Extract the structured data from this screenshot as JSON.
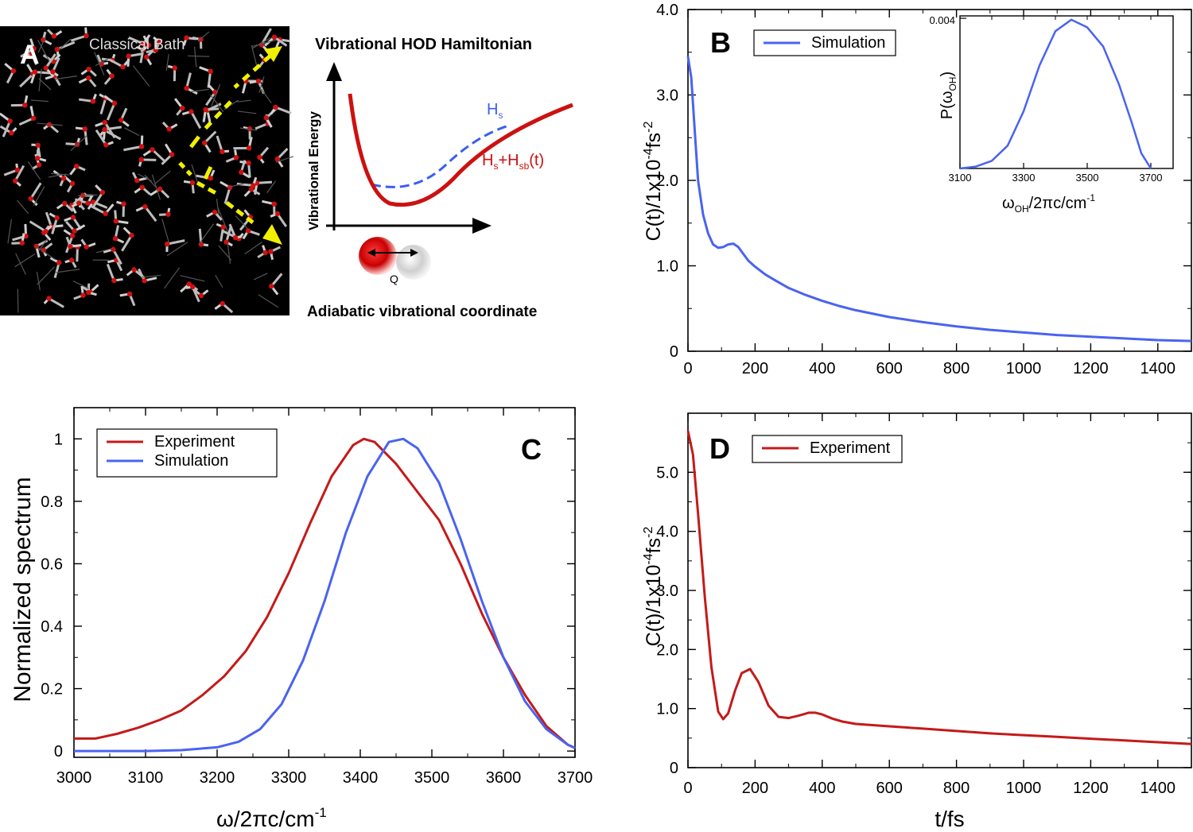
{
  "panel_a": {
    "letter": "A",
    "bath_label": "Classical Bath",
    "hamiltonian_title": "Vibrational HOD Hamiltonian",
    "y_label": "Vibrational Energy",
    "x_label": "Adiabatic vibrational coordinate",
    "hs_label": "H",
    "hs_sub": "s",
    "hssb_main": "H",
    "hssb_sub1": "s",
    "hssb_plus": "+H",
    "hssb_sub2": "sb",
    "hssb_tail": "(t)",
    "q_label": "Q",
    "colors": {
      "bath_bg": "#000000",
      "hs": "#3a5ff0",
      "hssb": "#cc1111",
      "arrow": "#f0f000"
    }
  },
  "chart_data": [
    {
      "id": "B",
      "type": "line",
      "panel_letter": "B",
      "xlabel": "",
      "ylabel_main": "C(t)/1x10",
      "ylabel_exp": "-4",
      "ylabel_unit": "fs",
      "ylabel_exp2": "-2",
      "xlim": [
        0,
        1500
      ],
      "ylim": [
        0,
        4.0
      ],
      "xticks": [
        0,
        200,
        400,
        600,
        800,
        1000,
        1200,
        1400
      ],
      "yticks": [
        0,
        1.0,
        2.0,
        3.0,
        4.0
      ],
      "ytick_labels": [
        "0",
        "1.0",
        "2.0",
        "3.0",
        "4.0"
      ],
      "legend": "top-left",
      "series": [
        {
          "name": "Simulation",
          "color": "#4a63f0",
          "x": [
            0,
            10,
            20,
            30,
            45,
            60,
            75,
            90,
            105,
            120,
            135,
            150,
            165,
            180,
            200,
            230,
            260,
            300,
            350,
            400,
            450,
            500,
            600,
            700,
            800,
            900,
            1000,
            1100,
            1200,
            1300,
            1400,
            1500
          ],
          "y": [
            3.45,
            3.2,
            2.6,
            2.0,
            1.6,
            1.38,
            1.25,
            1.21,
            1.22,
            1.25,
            1.26,
            1.22,
            1.14,
            1.06,
            0.99,
            0.9,
            0.83,
            0.74,
            0.66,
            0.59,
            0.53,
            0.48,
            0.4,
            0.34,
            0.29,
            0.25,
            0.22,
            0.19,
            0.17,
            0.15,
            0.13,
            0.12
          ]
        }
      ],
      "inset": {
        "type": "line",
        "xlabel_main": "ω",
        "xlabel_sub": "OH",
        "xlabel_tail": "/2πc/cm",
        "xlabel_exp": "-1",
        "ylabel_main": "P(ω",
        "ylabel_sub": "OH",
        "ylabel_tail": ")",
        "xlim": [
          3100,
          3770
        ],
        "ylim": [
          0,
          0.004
        ],
        "xticks": [
          3100,
          3300,
          3500,
          3700
        ],
        "ytick_top": "0.004",
        "series": [
          {
            "name": "",
            "color": "#4a63f0",
            "x": [
              3100,
              3150,
              3200,
              3250,
              3300,
              3350,
              3400,
              3450,
              3500,
              3550,
              3600,
              3640,
              3670,
              3700
            ],
            "y": [
              0,
              5e-05,
              0.0002,
              0.0006,
              0.0015,
              0.0027,
              0.0036,
              0.0039,
              0.0037,
              0.0032,
              0.0022,
              0.0012,
              0.0004,
              0.0
            ]
          }
        ]
      }
    },
    {
      "id": "C",
      "type": "line",
      "panel_letter": "C",
      "xlabel": "ω/2πc/cm",
      "xlabel_exp": "-1",
      "ylabel": "Normalized spectrum",
      "xlim": [
        3000,
        3700
      ],
      "ylim": [
        -0.02,
        1.1
      ],
      "xticks": [
        3000,
        3100,
        3200,
        3300,
        3400,
        3500,
        3600,
        3700
      ],
      "yticks": [
        0,
        0.2,
        0.4,
        0.6,
        0.8,
        1
      ],
      "ytick_labels": [
        "0",
        "0.2",
        "0.4",
        "0.6",
        "0.8",
        "1"
      ],
      "legend": "top-left",
      "series": [
        {
          "name": "Experiment",
          "color": "#c41a1a",
          "x": [
            3000,
            3030,
            3060,
            3090,
            3120,
            3150,
            3180,
            3210,
            3240,
            3270,
            3300,
            3330,
            3360,
            3390,
            3405,
            3420,
            3450,
            3480,
            3510,
            3540,
            3570,
            3600,
            3630,
            3660,
            3690,
            3700
          ],
          "y": [
            0.04,
            0.04,
            0.055,
            0.075,
            0.1,
            0.13,
            0.18,
            0.24,
            0.32,
            0.43,
            0.57,
            0.73,
            0.88,
            0.98,
            1.0,
            0.99,
            0.92,
            0.83,
            0.74,
            0.6,
            0.44,
            0.3,
            0.18,
            0.08,
            0.02,
            0.01
          ]
        },
        {
          "name": "Simulation",
          "color": "#4a63f0",
          "x": [
            3000,
            3100,
            3150,
            3200,
            3230,
            3260,
            3290,
            3320,
            3350,
            3380,
            3410,
            3440,
            3460,
            3480,
            3510,
            3540,
            3570,
            3600,
            3630,
            3660,
            3690,
            3700
          ],
          "y": [
            0.0,
            0.0,
            0.003,
            0.012,
            0.03,
            0.07,
            0.15,
            0.29,
            0.48,
            0.7,
            0.88,
            0.99,
            1.0,
            0.97,
            0.86,
            0.68,
            0.48,
            0.3,
            0.16,
            0.07,
            0.02,
            0.01
          ]
        }
      ]
    },
    {
      "id": "D",
      "type": "line",
      "panel_letter": "D",
      "xlabel": "t/fs",
      "ylabel_main": "C(t)/1x10",
      "ylabel_exp": "-4",
      "ylabel_unit": "fs",
      "ylabel_exp2": "-2",
      "xlim": [
        0,
        1500
      ],
      "ylim": [
        0,
        6.0
      ],
      "xticks": [
        0,
        200,
        400,
        600,
        800,
        1000,
        1200,
        1400
      ],
      "yticks": [
        0,
        1.0,
        2.0,
        3.0,
        4.0,
        5.0
      ],
      "ytick_labels": [
        "0",
        "1.0",
        "2.0",
        "3.0",
        "4.0",
        "5.0"
      ],
      "legend": "top-left",
      "series": [
        {
          "name": "Experiment",
          "color": "#c41a1a",
          "x": [
            0,
            15,
            30,
            50,
            70,
            90,
            105,
            120,
            140,
            160,
            185,
            210,
            240,
            270,
            300,
            330,
            360,
            380,
            400,
            430,
            460,
            500,
            600,
            700,
            800,
            900,
            1000,
            1100,
            1200,
            1300,
            1400,
            1500
          ],
          "y": [
            5.7,
            5.3,
            4.3,
            2.9,
            1.7,
            0.95,
            0.82,
            0.92,
            1.3,
            1.6,
            1.67,
            1.45,
            1.05,
            0.86,
            0.84,
            0.88,
            0.93,
            0.93,
            0.9,
            0.83,
            0.78,
            0.74,
            0.7,
            0.66,
            0.62,
            0.58,
            0.55,
            0.52,
            0.49,
            0.46,
            0.43,
            0.4
          ]
        }
      ]
    }
  ]
}
